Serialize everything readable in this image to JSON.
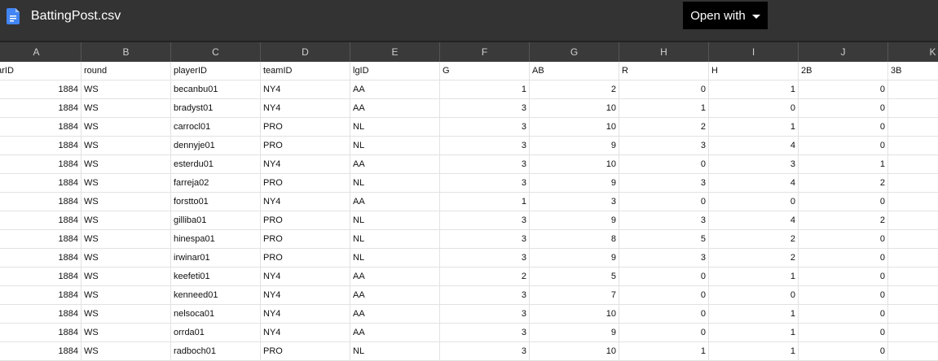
{
  "header": {
    "file_name": "BattingPost.csv",
    "open_with_label": "Open with",
    "file_icon": "google-docs-icon",
    "file_icon_color": "#4285f4"
  },
  "columns": [
    "A",
    "B",
    "C",
    "D",
    "E",
    "F",
    "G",
    "H",
    "I",
    "J",
    "K"
  ],
  "table": {
    "headers": [
      "earID",
      "round",
      "playerID",
      "teamID",
      "lgID",
      "G",
      "AB",
      "R",
      "H",
      "2B",
      "3B"
    ],
    "rows": [
      [
        "1884",
        "WS",
        "becanbu01",
        "NY4",
        "AA",
        "1",
        "2",
        "0",
        "1",
        "0",
        ""
      ],
      [
        "1884",
        "WS",
        "bradyst01",
        "NY4",
        "AA",
        "3",
        "10",
        "1",
        "0",
        "0",
        ""
      ],
      [
        "1884",
        "WS",
        "carrocl01",
        "PRO",
        "NL",
        "3",
        "10",
        "2",
        "1",
        "0",
        ""
      ],
      [
        "1884",
        "WS",
        "dennyje01",
        "PRO",
        "NL",
        "3",
        "9",
        "3",
        "4",
        "0",
        ""
      ],
      [
        "1884",
        "WS",
        "esterdu01",
        "NY4",
        "AA",
        "3",
        "10",
        "0",
        "3",
        "1",
        ""
      ],
      [
        "1884",
        "WS",
        "farreja02",
        "PRO",
        "NL",
        "3",
        "9",
        "3",
        "4",
        "2",
        ""
      ],
      [
        "1884",
        "WS",
        "forstto01",
        "NY4",
        "AA",
        "1",
        "3",
        "0",
        "0",
        "0",
        ""
      ],
      [
        "1884",
        "WS",
        "gilliba01",
        "PRO",
        "NL",
        "3",
        "9",
        "3",
        "4",
        "2",
        ""
      ],
      [
        "1884",
        "WS",
        "hinespa01",
        "PRO",
        "NL",
        "3",
        "8",
        "5",
        "2",
        "0",
        ""
      ],
      [
        "1884",
        "WS",
        "irwinar01",
        "PRO",
        "NL",
        "3",
        "9",
        "3",
        "2",
        "0",
        ""
      ],
      [
        "1884",
        "WS",
        "keefeti01",
        "NY4",
        "AA",
        "2",
        "5",
        "0",
        "1",
        "0",
        ""
      ],
      [
        "1884",
        "WS",
        "kenneed01",
        "NY4",
        "AA",
        "3",
        "7",
        "0",
        "0",
        "0",
        ""
      ],
      [
        "1884",
        "WS",
        "nelsoca01",
        "NY4",
        "AA",
        "3",
        "10",
        "0",
        "1",
        "0",
        ""
      ],
      [
        "1884",
        "WS",
        "orrda01",
        "NY4",
        "AA",
        "3",
        "9",
        "0",
        "1",
        "0",
        ""
      ],
      [
        "1884",
        "WS",
        "radboch01",
        "PRO",
        "NL",
        "3",
        "10",
        "1",
        "1",
        "0",
        ""
      ]
    ]
  }
}
